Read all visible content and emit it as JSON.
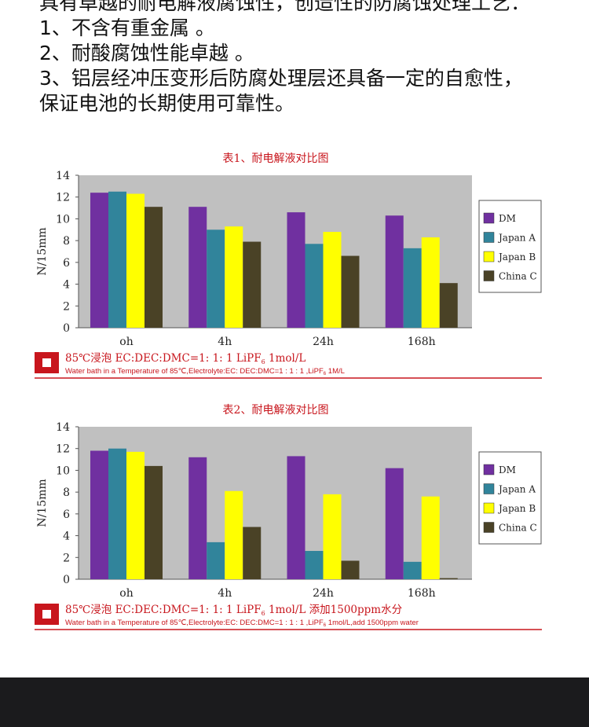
{
  "intro": {
    "lines": [
      "具有卓越的耐电解液腐蚀性，创造性的防腐蚀处理工艺：",
      "1、不含有重金属 。",
      "2、耐酸腐蚀性能卓越 。",
      "3、铝层经冲压变形后防腐处理层还具备一定的自愈性，",
      "保证电池的长期使用可靠性。"
    ]
  },
  "colors": {
    "DM": "#7030a0",
    "Japan A": "#31849b",
    "Japan B": "#ffff00",
    "China C": "#4a4226",
    "plot_bg": "#c0c0c0",
    "accent": "#c8161d"
  },
  "chart_data": [
    {
      "type": "bar",
      "title": "表1、耐电解液对比图",
      "categories": [
        "oh",
        "4h",
        "24h",
        "168h"
      ],
      "series": [
        {
          "name": "DM",
          "values": [
            12.4,
            11.1,
            10.6,
            10.3
          ]
        },
        {
          "name": "Japan A",
          "values": [
            12.5,
            9.0,
            7.7,
            7.3
          ]
        },
        {
          "name": "Japan B",
          "values": [
            12.3,
            9.3,
            8.8,
            8.3
          ]
        },
        {
          "name": "China C",
          "values": [
            11.1,
            7.9,
            6.6,
            4.1
          ]
        }
      ],
      "ylabel": "N/15mm",
      "ylim": [
        0,
        14
      ],
      "yticks": [
        "0",
        "2",
        "4",
        "6",
        "8",
        "10",
        "12",
        "14"
      ],
      "legend": "right",
      "note": {
        "cn_prefix": "85℃浸泡  EC:DEC:DMC=1: 1: 1  LiPF",
        "cn_sub": "6",
        "cn_suffix": " 1mol/L",
        "en_prefix": "Water bath in a Temperature of 85℃,Electrolyte:EC: DEC:DMC=1 : 1 : 1 ,LiPF",
        "en_sub": "6",
        "en_suffix": " 1M/L"
      }
    },
    {
      "type": "bar",
      "title": "表2、耐电解液对比图",
      "categories": [
        "oh",
        "4h",
        "24h",
        "168h"
      ],
      "series": [
        {
          "name": "DM",
          "values": [
            11.8,
            11.2,
            11.3,
            10.2
          ]
        },
        {
          "name": "Japan A",
          "values": [
            12.0,
            3.4,
            2.6,
            1.6
          ]
        },
        {
          "name": "Japan B",
          "values": [
            11.7,
            8.1,
            7.8,
            7.6
          ]
        },
        {
          "name": "China C",
          "values": [
            10.4,
            4.8,
            1.7,
            0.1
          ]
        }
      ],
      "ylabel": "N/15mm",
      "ylim": [
        0,
        14
      ],
      "yticks": [
        "0",
        "2",
        "4",
        "6",
        "8",
        "10",
        "12",
        "14"
      ],
      "legend": "right",
      "note": {
        "cn_prefix": "85℃浸泡  EC:DEC:DMC=1: 1: 1  LiPF",
        "cn_sub": "6",
        "cn_suffix": " 1mol/L  添加1500ppm水分",
        "en_prefix": "Water bath in a Temperature of 85℃,Electrolyte:EC: DEC:DMC=1 : 1 : 1 ,LiPF",
        "en_sub": "6",
        "en_suffix": " 1mol/L,add 1500ppm water"
      }
    }
  ]
}
